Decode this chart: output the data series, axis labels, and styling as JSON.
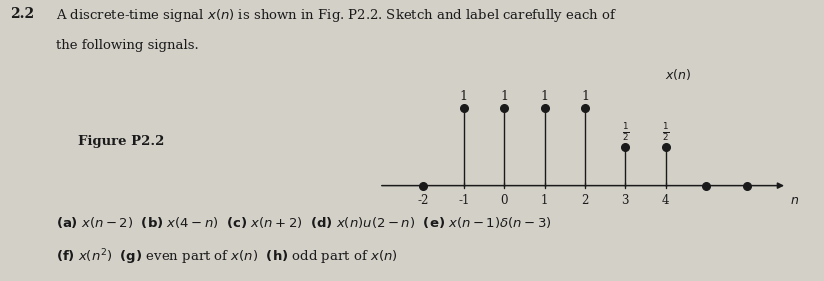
{
  "stem_n": [
    -1,
    0,
    1,
    2,
    3,
    4
  ],
  "stem_vals": [
    1,
    1,
    1,
    1,
    0.5,
    0.5
  ],
  "dot_zero_n": [
    -2,
    5,
    6
  ],
  "xlim": [
    -3.2,
    7.0
  ],
  "ylim": [
    -0.25,
    1.55
  ],
  "x_ticks": [
    -2,
    -1,
    0,
    1,
    2,
    3,
    4
  ],
  "bg_color": "#d3d0c8",
  "text_color": "#1a1a1a",
  "line_color": "#1a1a1a"
}
